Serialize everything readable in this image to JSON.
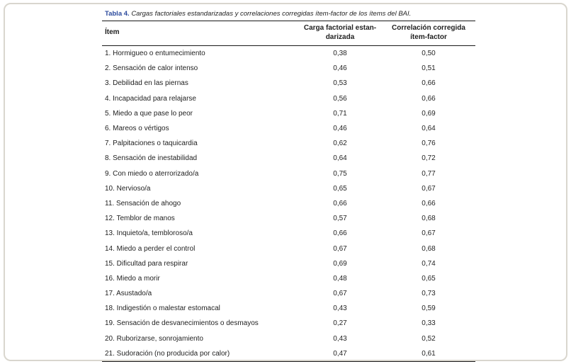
{
  "page": {
    "background": "#ffffff",
    "card_border_color": "#d9d6ce"
  },
  "table": {
    "caption": {
      "label": "Tabla 4.",
      "label_color": "#2b4a9d",
      "text": "Cargas factoriales estandarizadas y correlaciones corregidas ítem-factor de los ítems del BAI."
    },
    "columns": [
      {
        "label": "Ítem"
      },
      {
        "line1": "Carga factorial estan-",
        "line2": "darizada"
      },
      {
        "line1": "Correlación corregida",
        "line2": "ítem-factor"
      }
    ],
    "rows": [
      {
        "item": "1. Hormigueo o entumecimiento",
        "carga": "0,38",
        "correlacion": "0,50"
      },
      {
        "item": "2. Sensación de calor intenso",
        "carga": "0,46",
        "correlacion": "0,51"
      },
      {
        "item": "3. Debilidad en las piernas",
        "carga": "0,53",
        "correlacion": "0,66"
      },
      {
        "item": "4. Incapacidad para relajarse",
        "carga": "0,56",
        "correlacion": "0,66"
      },
      {
        "item": "5. Miedo a que pase lo peor",
        "carga": "0,71",
        "correlacion": "0,69"
      },
      {
        "item": "6. Mareos o vértigos",
        "carga": "0,46",
        "correlacion": "0,64"
      },
      {
        "item": "7. Palpitaciones o taquicardia",
        "carga": "0,62",
        "correlacion": "0,76"
      },
      {
        "item": "8. Sensación de inestabilidad",
        "carga": "0,64",
        "correlacion": "0,72"
      },
      {
        "item": "9. Con miedo o aterrorizado/a",
        "carga": "0,75",
        "correlacion": "0,77"
      },
      {
        "item": "10. Nervioso/a",
        "carga": "0,65",
        "correlacion": "0,67"
      },
      {
        "item": "11. Sensación de ahogo",
        "carga": "0,66",
        "correlacion": "0,66"
      },
      {
        "item": "12. Temblor de manos",
        "carga": "0,57",
        "correlacion": "0,68"
      },
      {
        "item": "13. Inquieto/a, tembloroso/a",
        "carga": "0,66",
        "correlacion": "0,67"
      },
      {
        "item": "14. Miedo a perder el control",
        "carga": "0,67",
        "correlacion": "0,68"
      },
      {
        "item": "15. Dificultad para respirar",
        "carga": "0,69",
        "correlacion": "0,74"
      },
      {
        "item": "16. Miedo a morir",
        "carga": "0,48",
        "correlacion": "0,65"
      },
      {
        "item": "17. Asustado/a",
        "carga": "0,67",
        "correlacion": "0,73"
      },
      {
        "item": "18. Indigestión o malestar estomacal",
        "carga": "0,43",
        "correlacion": "0,59"
      },
      {
        "item": "19. Sensación de desvanecimientos o desmayos",
        "carga": "0,27",
        "correlacion": "0,33"
      },
      {
        "item": "20. Ruborizarse, sonrojamiento",
        "carga": "0,43",
        "correlacion": "0,52"
      },
      {
        "item": "21. Sudoración (no producida por calor)",
        "carga": "0,47",
        "correlacion": "0,61"
      }
    ]
  }
}
